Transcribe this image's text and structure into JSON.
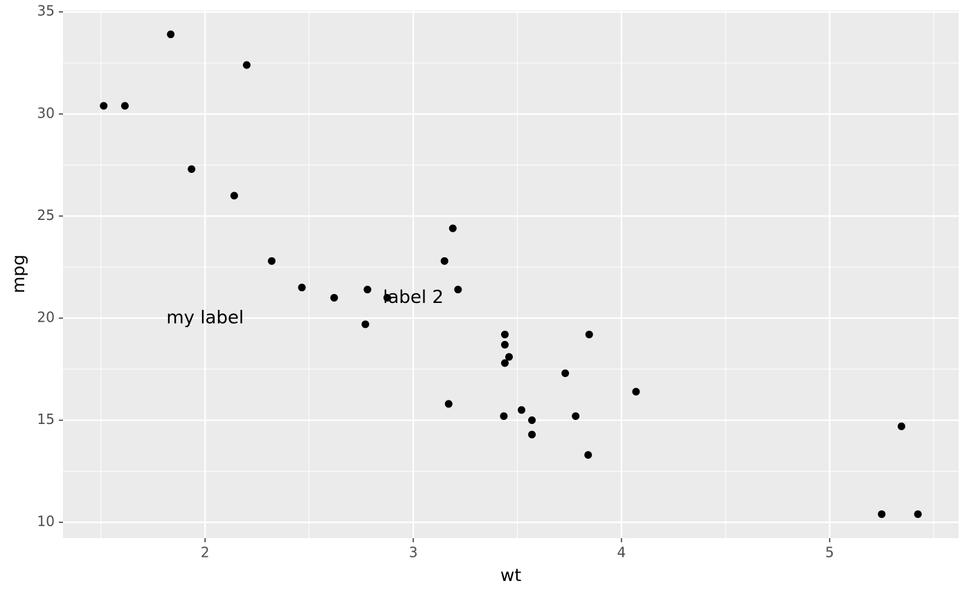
{
  "chart_data": {
    "type": "scatter",
    "x_label": "wt",
    "y_label": "mpg",
    "x": [
      2.62,
      2.875,
      2.32,
      3.215,
      3.44,
      3.46,
      3.57,
      3.19,
      3.15,
      3.44,
      3.44,
      4.07,
      3.73,
      3.78,
      5.25,
      5.424,
      5.345,
      2.2,
      1.615,
      1.835,
      2.465,
      3.52,
      3.435,
      3.84,
      3.845,
      1.935,
      2.14,
      1.513,
      3.17,
      2.77,
      3.57,
      2.78
    ],
    "values": [
      21.0,
      21.0,
      22.8,
      21.4,
      18.7,
      18.1,
      14.3,
      24.4,
      22.8,
      19.2,
      17.8,
      16.4,
      17.3,
      15.2,
      10.4,
      10.4,
      14.7,
      32.4,
      30.4,
      33.9,
      21.5,
      15.5,
      15.2,
      13.3,
      19.2,
      27.3,
      26.0,
      30.4,
      15.8,
      19.7,
      15.0,
      21.4
    ],
    "color": "#000000",
    "annotations": [
      {
        "text": "my label",
        "x": 2,
        "y": 20
      },
      {
        "text": "label 2",
        "x": 3,
        "y": 21
      }
    ],
    "xlim": [
      1.3175,
      5.6195
    ],
    "ylim": [
      9.225,
      35.075
    ],
    "xticks": [
      2,
      3,
      4,
      5
    ],
    "yticks": [
      10,
      15,
      20,
      25,
      30,
      35
    ],
    "grid": true
  }
}
